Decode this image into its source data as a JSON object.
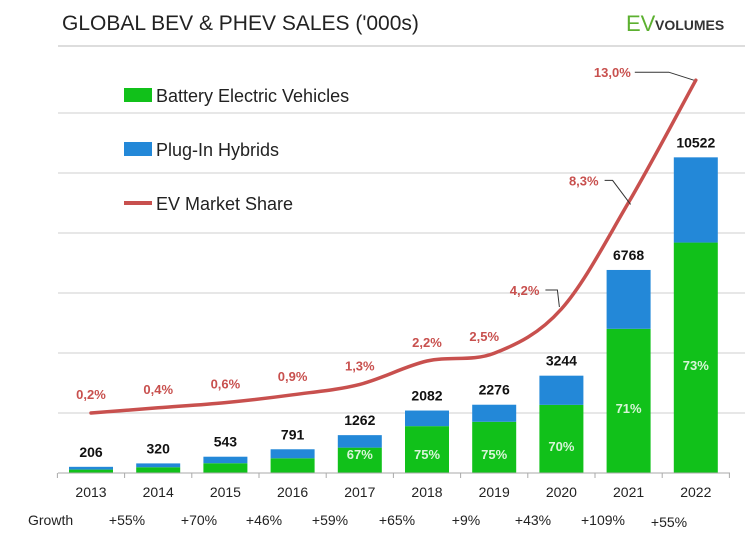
{
  "chart_data": {
    "type": "bar",
    "stacked": true,
    "title": "GLOBAL BEV & PHEV SALES ('000s)",
    "logo": {
      "part1": "EV",
      "part2": "VOLUMES"
    },
    "categories": [
      "2013",
      "2014",
      "2015",
      "2016",
      "2017",
      "2018",
      "2019",
      "2020",
      "2021",
      "2022"
    ],
    "totals": [
      206,
      320,
      543,
      791,
      1262,
      2082,
      2276,
      3244,
      6768,
      10522
    ],
    "bev_share_pct": [
      55,
      60,
      60,
      62,
      67,
      75,
      75,
      70,
      71,
      73
    ],
    "bev_share_labels": [
      "",
      "",
      "",
      "",
      "67%",
      "75%",
      "75%",
      "70%",
      "71%",
      "73%"
    ],
    "series": [
      {
        "name": "Battery Electric Vehicles",
        "color": "#11c11a"
      },
      {
        "name": "Plug-In Hybrids",
        "color": "#2388d8"
      }
    ],
    "line_series": {
      "name": "EV Market Share",
      "color": "#c8504e",
      "values": [
        0.2,
        0.4,
        0.6,
        0.9,
        1.3,
        2.2,
        2.5,
        4.2,
        8.3,
        13.0
      ],
      "labels": [
        "0,2%",
        "0,4%",
        "0,6%",
        "0,9%",
        "1,3%",
        "2,2%",
        "2,5%",
        "4,2%",
        "8,3%",
        "13,0%"
      ]
    },
    "growth_label": "Growth",
    "growth": [
      "+55%",
      "+70%",
      "+46%",
      "+59%",
      "+65%",
      "+9%",
      "+43%",
      "+109%",
      "+55%"
    ],
    "ylim": [
      0,
      12000
    ],
    "grid": true,
    "legend_placement": "top-left"
  }
}
